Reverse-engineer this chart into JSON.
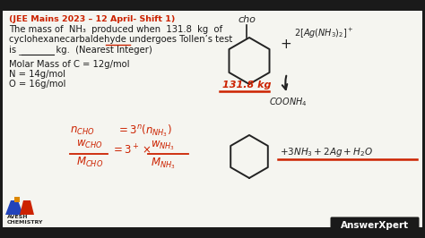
{
  "bg_color": "#1a1a1a",
  "content_bg": "#f5f5f0",
  "header_text": "(JEE Mains 2023 – 12 April- Shift 1)",
  "header_color": "#cc2200",
  "text_color": "#1a1a1a",
  "red_color": "#cc2200",
  "problem_line1": "The mass of  NH₃  produced when  131.8  kg  of",
  "problem_line2": "cyclohexanecarbaldehyde undergoes Tollen’s test",
  "problem_line3": "is _______  kg.  (Nearest Integer)",
  "mm_line1": "Molar Mass of C = 12g/mol",
  "mm_line2": "N = 14g/mol",
  "mm_line3": "O = 16g/mol",
  "answer_box_text": "AnswerXpert",
  "answer_box_bg": "#1a1a1a",
  "answer_box_color": "#ffffff"
}
